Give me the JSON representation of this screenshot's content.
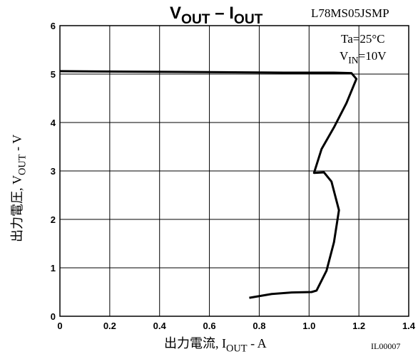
{
  "chart_data": {
    "type": "line",
    "title": [
      "V",
      "OUT",
      " – I",
      "OUT"
    ],
    "annotations": {
      "part": "L78MS05JSMP",
      "temp": "Ta=25°C",
      "vin": [
        "V",
        "IN",
        "=10V"
      ],
      "code": "IL00007"
    },
    "xlabel": [
      "出力電流, I",
      "OUT",
      " - A"
    ],
    "ylabel": [
      "出力電圧, V",
      "OUT",
      " - V"
    ],
    "x": [
      0,
      0.3,
      0.6,
      0.9,
      1.1,
      1.17,
      1.19,
      1.15,
      1.1,
      1.05,
      1.02,
      1.06,
      1.09,
      1.12,
      1.1,
      1.07,
      1.03,
      1.01,
      0.93,
      0.85,
      0.76
    ],
    "series": [
      {
        "name": "VOUT",
        "color": "#000000",
        "values": [
          5.06,
          5.05,
          5.04,
          5.03,
          5.03,
          5.02,
          4.9,
          4.4,
          3.9,
          3.45,
          2.96,
          2.97,
          2.78,
          2.19,
          1.53,
          0.94,
          0.53,
          0.5,
          0.49,
          0.46,
          0.38
        ]
      }
    ],
    "xlim": [
      0,
      1.4
    ],
    "xticks": [
      0,
      0.2,
      0.4,
      0.6,
      0.8,
      {
        "value": 1.0,
        "label": "1.0"
      },
      1.2,
      1.4
    ],
    "ylim": [
      0,
      6
    ],
    "yticks": [
      0,
      1,
      2,
      3,
      4,
      5,
      6
    ],
    "grid": true
  }
}
